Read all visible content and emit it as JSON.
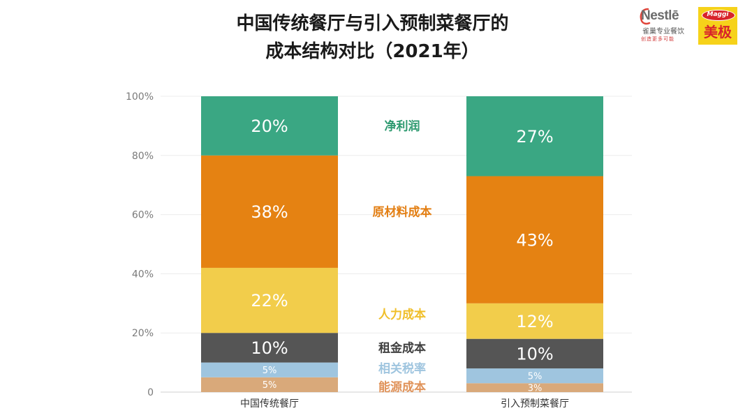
{
  "title_lines": [
    "中国传统餐厅与引入预制菜餐厅的",
    "成本结构对比（2021年）"
  ],
  "logos": {
    "nestle_word": "Nestlē",
    "nestle_cn": "雀巢专业餐饮",
    "nestle_slogan": "创造更多可能",
    "maggi_word": "Maggi",
    "maggi_cn": "美极"
  },
  "chart_data": {
    "type": "bar",
    "stacked": true,
    "categories": [
      "中国传统餐厅",
      "引入预制菜餐厅"
    ],
    "series": [
      {
        "name": "能源成本",
        "values": [
          5,
          3
        ],
        "color": "#d9a97a",
        "labels": [
          "5%",
          "3%"
        ]
      },
      {
        "name": "相关税率",
        "values": [
          5,
          5
        ],
        "color": "#9fc5df",
        "labels": [
          "5%",
          "5%"
        ]
      },
      {
        "name": "租金成本",
        "values": [
          10,
          10
        ],
        "color": "#555555",
        "labels": [
          "10%",
          "10%"
        ]
      },
      {
        "name": "人力成本",
        "values": [
          22,
          12
        ],
        "color": "#f2cd4b",
        "labels": [
          "22%",
          "12%"
        ]
      },
      {
        "name": "原材料成本",
        "values": [
          38,
          43
        ],
        "color": "#e58212",
        "labels": [
          "38%",
          "43%"
        ]
      },
      {
        "name": "净利润",
        "values": [
          20,
          27
        ],
        "color": "#3aa783",
        "labels": [
          "20%",
          "27%"
        ]
      }
    ],
    "legend_label_colors": [
      "#e0935a",
      "#9fc5df",
      "#404040",
      "#f0bf2a",
      "#e37f14",
      "#2e9a70"
    ],
    "ylim": [
      0,
      100
    ],
    "yticks": [
      0,
      20,
      40,
      60,
      80,
      100
    ],
    "ytick_labels": [
      "0",
      "20%",
      "40%",
      "60%",
      "80%",
      "100%"
    ],
    "grid": true,
    "legend_placement": "between bars"
  }
}
